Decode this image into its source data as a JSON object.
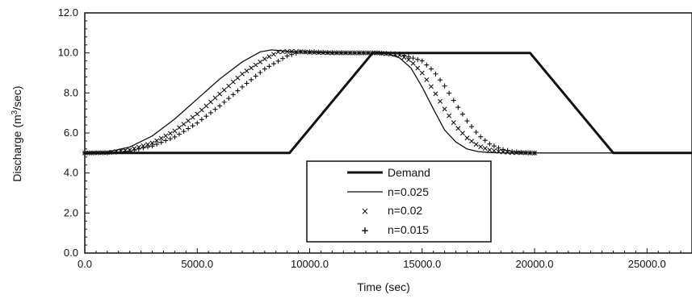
{
  "chart_data": {
    "type": "line",
    "title": "",
    "xlabel": "Time (sec)",
    "ylabel": "Discharge (m³/sec)",
    "xlim": [
      0,
      27000
    ],
    "ylim": [
      0,
      12
    ],
    "x_ticks": [
      "0.0",
      "5000.0",
      "10000.0",
      "15000.0",
      "20000.0",
      "25000.0"
    ],
    "x_tick_values": [
      0,
      5000,
      10000,
      15000,
      20000,
      25000
    ],
    "y_ticks": [
      "0.0",
      "2.0",
      "4.0",
      "6.0",
      "8.0",
      "10.0",
      "12.0"
    ],
    "y_tick_values": [
      0,
      2,
      4,
      6,
      8,
      10,
      12
    ],
    "grid": false,
    "legend_position": "bottom-center",
    "series": [
      {
        "name": "Demand",
        "style": "thick-line",
        "color": "#111111",
        "x": [
          0,
          9100,
          12800,
          19800,
          23500,
          27000
        ],
        "y": [
          5.0,
          5.0,
          10.0,
          10.0,
          5.0,
          5.0
        ]
      },
      {
        "name": "n=0.025",
        "style": "thin-line",
        "color": "#111111",
        "x": [
          0,
          1000,
          2000,
          3000,
          4000,
          5000,
          6000,
          7000,
          7800,
          8300,
          9000,
          10000,
          11000,
          12000,
          13000,
          13500,
          14000,
          14500,
          15000,
          15500,
          16000,
          16500,
          17000,
          17500,
          18000,
          19000,
          20000,
          27000
        ],
        "y": [
          5.0,
          5.05,
          5.3,
          5.85,
          6.7,
          7.7,
          8.7,
          9.55,
          10.05,
          10.15,
          10.08,
          10.03,
          10.0,
          10.0,
          10.0,
          9.95,
          9.75,
          9.25,
          8.3,
          7.2,
          6.15,
          5.55,
          5.2,
          5.07,
          5.02,
          5.0,
          5.0,
          5.0
        ]
      },
      {
        "name": "n=0.02",
        "style": "x-markers",
        "color": "#111111",
        "x": [
          0,
          1000,
          2000,
          3000,
          4000,
          5000,
          6000,
          7000,
          8000,
          8600,
          9200,
          10000,
          11000,
          12000,
          13000,
          14000,
          14500,
          15000,
          15500,
          16000,
          16500,
          17000,
          17500,
          18000,
          18500,
          19000,
          20000
        ],
        "y": [
          5.0,
          5.02,
          5.15,
          5.5,
          6.1,
          6.95,
          7.95,
          8.95,
          9.7,
          10.05,
          10.08,
          10.03,
          10.0,
          10.0,
          10.0,
          9.9,
          9.6,
          9.0,
          8.15,
          7.2,
          6.35,
          5.75,
          5.35,
          5.15,
          5.06,
          5.02,
          5.0
        ]
      },
      {
        "name": "n=0.015",
        "style": "plus-markers",
        "color": "#111111",
        "x": [
          0,
          1000,
          2000,
          3000,
          4000,
          5000,
          6000,
          7000,
          8000,
          9000,
          9600,
          10200,
          11000,
          12000,
          13000,
          14000,
          15000,
          15500,
          16000,
          16500,
          17000,
          17500,
          18000,
          18500,
          19000,
          19500,
          20000
        ],
        "y": [
          5.0,
          5.01,
          5.1,
          5.35,
          5.8,
          6.5,
          7.35,
          8.3,
          9.2,
          9.85,
          10.05,
          10.05,
          10.02,
          10.0,
          10.0,
          9.95,
          9.6,
          9.1,
          8.35,
          7.45,
          6.6,
          5.9,
          5.45,
          5.2,
          5.08,
          5.03,
          5.0
        ]
      }
    ]
  }
}
